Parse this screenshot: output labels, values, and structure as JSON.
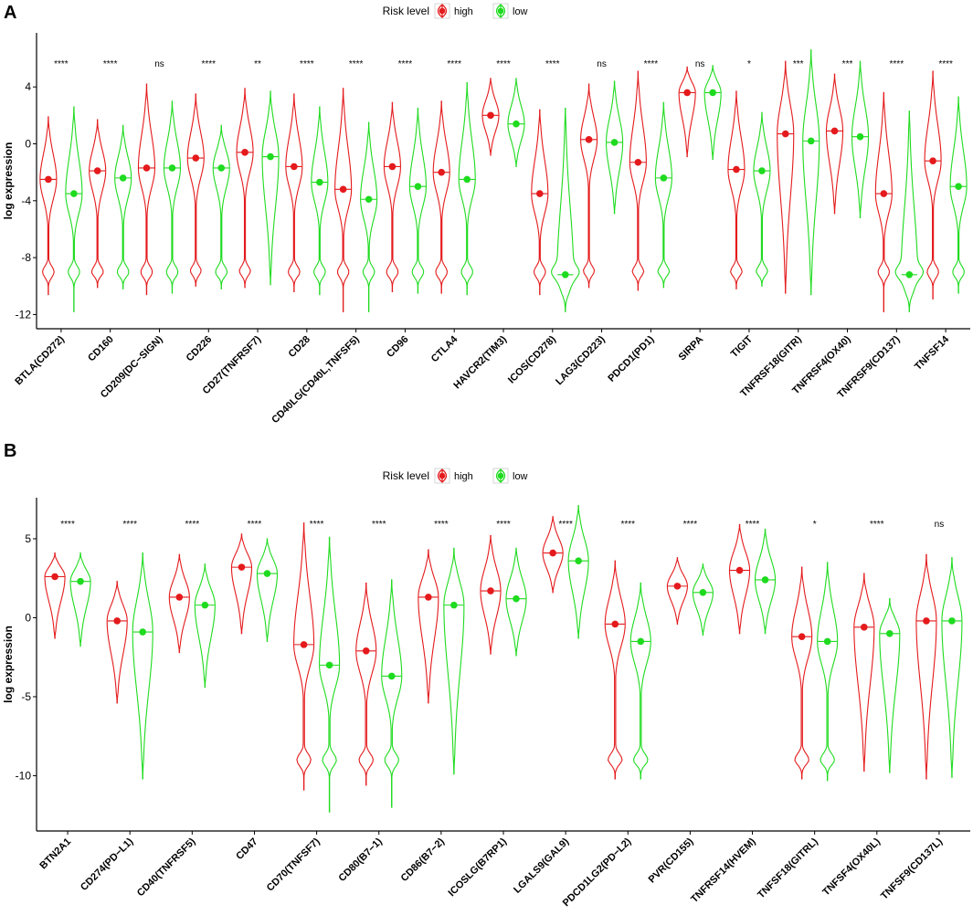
{
  "colors": {
    "high": "#e41a1c",
    "low": "#1fdb1f",
    "axis": "#000000"
  },
  "legend": {
    "title": "Risk level",
    "high_label": "high",
    "low_label": "low"
  },
  "chart_data": [
    {
      "panel": "A",
      "type": "violin",
      "ylabel": "log  expression",
      "yticks": [
        4,
        0,
        -4,
        -8,
        -12
      ],
      "ylim": [
        -13,
        7.8
      ],
      "series": [
        {
          "name": "high"
        },
        {
          "name": "low"
        }
      ],
      "categories": [
        {
          "label": "BTLA(CD272)",
          "sig": "****",
          "high": {
            "median": -2.5,
            "min": -10.6,
            "max": 1.9,
            "low_mode": true
          },
          "low": {
            "median": -3.5,
            "min": -11.8,
            "max": 2.6,
            "low_mode": true
          }
        },
        {
          "label": "CD160",
          "sig": "****",
          "high": {
            "median": -1.9,
            "min": -10.1,
            "max": 1.7,
            "low_mode": true
          },
          "low": {
            "median": -2.4,
            "min": -10.2,
            "max": 1.3,
            "low_mode": true
          }
        },
        {
          "label": "CD209(DC−SIGN)",
          "sig": "ns",
          "high": {
            "median": -1.7,
            "min": -10.6,
            "max": 4.2,
            "low_mode": true
          },
          "low": {
            "median": -1.7,
            "min": -10.5,
            "max": 3.0,
            "low_mode": true
          }
        },
        {
          "label": "CD226",
          "sig": "****",
          "high": {
            "median": -1.0,
            "min": -10.0,
            "max": 3.5,
            "low_mode": true
          },
          "low": {
            "median": -1.7,
            "min": -10.2,
            "max": 1.3,
            "low_mode": true
          }
        },
        {
          "label": "CD27(TNFRSF7)",
          "sig": "**",
          "high": {
            "median": -0.6,
            "min": -10.1,
            "max": 3.9,
            "low_mode": true
          },
          "low": {
            "median": -0.9,
            "min": -9.9,
            "max": 3.7,
            "low_mode": false
          }
        },
        {
          "label": "CD28",
          "sig": "****",
          "high": {
            "median": -1.6,
            "min": -10.4,
            "max": 3.5,
            "low_mode": true
          },
          "low": {
            "median": -2.7,
            "min": -10.6,
            "max": 2.6,
            "low_mode": true
          }
        },
        {
          "label": "CD40LG(CD40L,TNFSF5)",
          "sig": "****",
          "high": {
            "median": -3.2,
            "min": -11.8,
            "max": 3.9,
            "low_mode": true
          },
          "low": {
            "median": -3.9,
            "min": -11.8,
            "max": 1.5,
            "low_mode": true
          }
        },
        {
          "label": "CD96",
          "sig": "****",
          "high": {
            "median": -1.6,
            "min": -10.4,
            "max": 2.9,
            "low_mode": true
          },
          "low": {
            "median": -3.0,
            "min": -10.5,
            "max": 2.5,
            "low_mode": true
          }
        },
        {
          "label": "CTLA4",
          "sig": "****",
          "high": {
            "median": -2.0,
            "min": -10.5,
            "max": 3.0,
            "low_mode": true
          },
          "low": {
            "median": -2.5,
            "min": -10.6,
            "max": 4.3,
            "low_mode": true
          }
        },
        {
          "label": "HAVCR2(TIM3)",
          "sig": "****",
          "high": {
            "median": 2.0,
            "min": -0.8,
            "max": 4.6,
            "low_mode": false
          },
          "low": {
            "median": 1.4,
            "min": -1.6,
            "max": 4.6,
            "low_mode": false
          }
        },
        {
          "label": "ICOS(CD278)",
          "sig": "****",
          "high": {
            "median": -3.5,
            "min": -10.6,
            "max": 2.4,
            "low_mode": true
          },
          "low": {
            "median": -9.2,
            "min": -11.8,
            "max": 2.5,
            "low_mode": true
          }
        },
        {
          "label": "LAG3(CD223)",
          "sig": "ns",
          "high": {
            "median": 0.3,
            "min": -10.1,
            "max": 4.2,
            "low_mode": true
          },
          "low": {
            "median": 0.1,
            "min": -4.9,
            "max": 4.4,
            "low_mode": false
          }
        },
        {
          "label": "PDCD1(PD1)",
          "sig": "****",
          "high": {
            "median": -1.3,
            "min": -10.3,
            "max": 5.1,
            "low_mode": true
          },
          "low": {
            "median": -2.4,
            "min": -10.1,
            "max": 2.9,
            "low_mode": true
          }
        },
        {
          "label": "SIRPA",
          "sig": "ns",
          "high": {
            "median": 3.6,
            "min": -0.9,
            "max": 5.4,
            "low_mode": false
          },
          "low": {
            "median": 3.6,
            "min": -1.1,
            "max": 5.5,
            "low_mode": false
          }
        },
        {
          "label": "TIGIT",
          "sig": "*",
          "high": {
            "median": -1.8,
            "min": -10.2,
            "max": 3.7,
            "low_mode": true
          },
          "low": {
            "median": -1.9,
            "min": -10.0,
            "max": 2.2,
            "low_mode": true
          }
        },
        {
          "label": "TNFRSF18(GITR)",
          "sig": "***",
          "high": {
            "median": 0.7,
            "min": -10.5,
            "max": 5.8,
            "low_mode": false
          },
          "low": {
            "median": 0.2,
            "min": -10.6,
            "max": 6.6,
            "low_mode": false
          }
        },
        {
          "label": "TNFRSF4(OX40)",
          "sig": "***",
          "high": {
            "median": 0.9,
            "min": -4.9,
            "max": 4.9,
            "low_mode": false
          },
          "low": {
            "median": 0.5,
            "min": -5.2,
            "max": 5.8,
            "low_mode": false
          }
        },
        {
          "label": "TNFRSF9(CD137)",
          "sig": "****",
          "high": {
            "median": -3.5,
            "min": -11.8,
            "max": 3.6,
            "low_mode": true
          },
          "low": {
            "median": -9.2,
            "min": -11.8,
            "max": 2.3,
            "low_mode": true
          }
        },
        {
          "label": "TNFSF14",
          "sig": "****",
          "high": {
            "median": -1.2,
            "min": -10.9,
            "max": 5.1,
            "low_mode": true
          },
          "low": {
            "median": -3.0,
            "min": -10.5,
            "max": 3.3,
            "low_mode": true
          }
        }
      ]
    },
    {
      "panel": "B",
      "type": "violin",
      "ylabel": "log  expression",
      "yticks": [
        5,
        0,
        -5,
        -10
      ],
      "ylim": [
        -13.5,
        7.6
      ],
      "series": [
        {
          "name": "high"
        },
        {
          "name": "low"
        }
      ],
      "categories": [
        {
          "label": "BTN2A1",
          "sig": "****",
          "high": {
            "median": 2.6,
            "min": -1.3,
            "max": 4.1,
            "low_mode": false
          },
          "low": {
            "median": 2.3,
            "min": -1.8,
            "max": 4.1,
            "low_mode": false
          }
        },
        {
          "label": "CD274(PD−L1)",
          "sig": "****",
          "high": {
            "median": -0.2,
            "min": -5.4,
            "max": 2.3,
            "low_mode": false
          },
          "low": {
            "median": -0.9,
            "min": -10.2,
            "max": 4.1,
            "low_mode": false
          }
        },
        {
          "label": "CD40(TNFRSF5)",
          "sig": "****",
          "high": {
            "median": 1.3,
            "min": -2.2,
            "max": 4.0,
            "low_mode": false
          },
          "low": {
            "median": 0.8,
            "min": -4.4,
            "max": 3.4,
            "low_mode": false
          }
        },
        {
          "label": "CD47",
          "sig": "****",
          "high": {
            "median": 3.2,
            "min": -1.0,
            "max": 5.3,
            "low_mode": false
          },
          "low": {
            "median": 2.8,
            "min": -1.5,
            "max": 5.0,
            "low_mode": false
          }
        },
        {
          "label": "CD70(TNFSF7)",
          "sig": "****",
          "high": {
            "median": -1.7,
            "min": -10.9,
            "max": 6.0,
            "low_mode": true
          },
          "low": {
            "median": -3.0,
            "min": -12.3,
            "max": 5.1,
            "low_mode": true
          }
        },
        {
          "label": "CD80(B7−1)",
          "sig": "****",
          "high": {
            "median": -2.1,
            "min": -10.6,
            "max": 2.2,
            "low_mode": true
          },
          "low": {
            "median": -3.7,
            "min": -12.0,
            "max": 2.4,
            "low_mode": true
          }
        },
        {
          "label": "CD86(B7−2)",
          "sig": "****",
          "high": {
            "median": 1.3,
            "min": -5.4,
            "max": 4.3,
            "low_mode": false
          },
          "low": {
            "median": 0.8,
            "min": -9.9,
            "max": 4.4,
            "low_mode": false
          }
        },
        {
          "label": "ICOSLG(B7RP1)",
          "sig": "****",
          "high": {
            "median": 1.7,
            "min": -2.3,
            "max": 5.2,
            "low_mode": false
          },
          "low": {
            "median": 1.2,
            "min": -2.4,
            "max": 4.4,
            "low_mode": false
          }
        },
        {
          "label": "LGALS9(GAL9)",
          "sig": "****",
          "high": {
            "median": 4.1,
            "min": 1.6,
            "max": 6.4,
            "low_mode": false
          },
          "low": {
            "median": 3.6,
            "min": -1.3,
            "max": 7.1,
            "low_mode": false
          }
        },
        {
          "label": "PDCD1LG2(PD−L2)",
          "sig": "****",
          "high": {
            "median": -0.4,
            "min": -10.2,
            "max": 3.6,
            "low_mode": true
          },
          "low": {
            "median": -1.5,
            "min": -10.2,
            "max": 2.2,
            "low_mode": true
          }
        },
        {
          "label": "PVR(CD155)",
          "sig": "****",
          "high": {
            "median": 2.0,
            "min": -0.4,
            "max": 3.8,
            "low_mode": false
          },
          "low": {
            "median": 1.6,
            "min": -1.1,
            "max": 3.4,
            "low_mode": false
          }
        },
        {
          "label": "TNFRSF14(HVEM)",
          "sig": "****",
          "high": {
            "median": 3.0,
            "min": -1.0,
            "max": 5.9,
            "low_mode": false
          },
          "low": {
            "median": 2.4,
            "min": -1.0,
            "max": 5.6,
            "low_mode": false
          }
        },
        {
          "label": "TNFSF18(GITRL)",
          "sig": "*",
          "high": {
            "median": -1.2,
            "min": -10.2,
            "max": 3.2,
            "low_mode": true
          },
          "low": {
            "median": -1.5,
            "min": -10.3,
            "max": 3.5,
            "low_mode": true
          }
        },
        {
          "label": "TNFSF4(OX40L)",
          "sig": "****",
          "high": {
            "median": -0.6,
            "min": -9.7,
            "max": 2.8,
            "low_mode": false
          },
          "low": {
            "median": -1.0,
            "min": -9.8,
            "max": 1.2,
            "low_mode": false
          }
        },
        {
          "label": "TNFSF9(CD137L)",
          "sig": "ns",
          "high": {
            "median": -0.2,
            "min": -10.2,
            "max": 4.0,
            "low_mode": false
          },
          "low": {
            "median": -0.2,
            "min": -10.1,
            "max": 3.8,
            "low_mode": false
          }
        }
      ]
    }
  ]
}
